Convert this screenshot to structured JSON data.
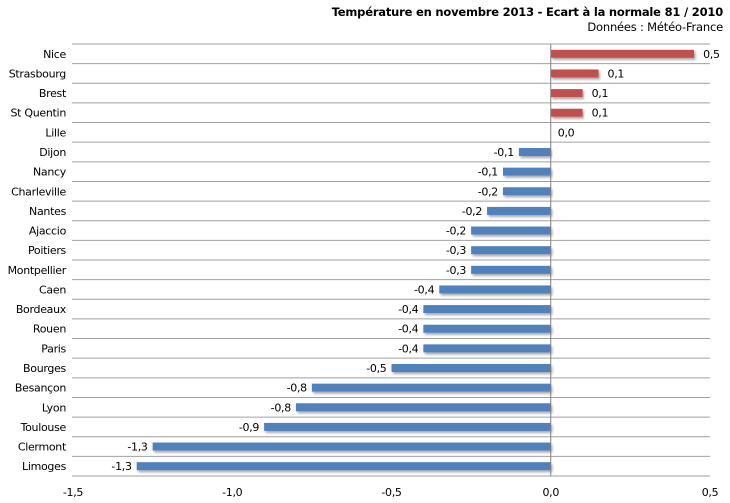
{
  "chart_data": {
    "type": "bar",
    "orientation": "horizontal",
    "title": "Température en novembre 2013 - Ecart à la normale 81 / 2010",
    "subtitle": "Données : Météo-France",
    "categories": [
      "Nice",
      "Strasbourg",
      "Brest",
      "St Quentin",
      "Lille",
      "Dijon",
      "Nancy",
      "Charleville",
      "Nantes",
      "Ajaccio",
      "Poitiers",
      "Montpellier",
      "Caen",
      "Bordeaux",
      "Rouen",
      "Paris",
      "Bourges",
      "Besançon",
      "Lyon",
      "Toulouse",
      "Clermont",
      "Limoges"
    ],
    "values": [
      0.45,
      0.15,
      0.1,
      0.1,
      0.0,
      -0.1,
      -0.15,
      -0.15,
      -0.2,
      -0.25,
      -0.25,
      -0.25,
      -0.35,
      -0.4,
      -0.4,
      -0.4,
      -0.5,
      -0.75,
      -0.8,
      -0.9,
      -1.25,
      -1.3
    ],
    "data_labels": [
      "0,5",
      "0,1",
      "0,1",
      "0,1",
      "0,0",
      "-0,1",
      "-0,1",
      "-0,2",
      "-0,2",
      "-0,2",
      "-0,3",
      "-0,3",
      "-0,4",
      "-0,4",
      "-0,4",
      "-0,4",
      "-0,5",
      "-0,8",
      "-0,8",
      "-0,9",
      "-1,3",
      "-1,3"
    ],
    "xlim": [
      -1.5,
      0.5
    ],
    "x_ticks": [
      -1.5,
      -1.0,
      -0.5,
      0.0,
      0.5
    ],
    "x_tick_labels": [
      "-1,5",
      "-1,0",
      "-0,5",
      "0,0",
      "0,5"
    ],
    "xlabel": "",
    "ylabel": "",
    "grid": "horizontal row separators",
    "legend": "none",
    "colors": {
      "positive": "#C0504D",
      "negative": "#4F81BD",
      "grid": "#A0A0A0"
    }
  }
}
